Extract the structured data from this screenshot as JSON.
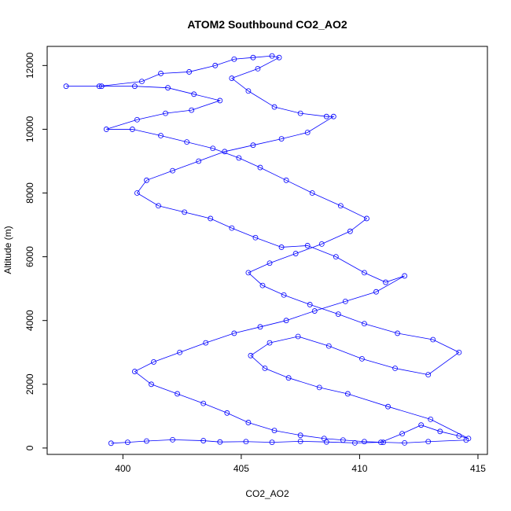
{
  "chart_data": {
    "type": "scatter",
    "title": "ATOM2 Southbound CO2_AO2",
    "xlabel": "CO2_AO2",
    "ylabel": "Altitude (m)",
    "xlim": [
      396.8,
      415.4
    ],
    "ylim": [
      -200,
      12600
    ],
    "xticks": [
      400,
      405,
      410,
      415
    ],
    "yticks": [
      0,
      2000,
      4000,
      6000,
      8000,
      10000,
      12000
    ],
    "grid": false,
    "legend": "none",
    "connected": true,
    "color": "#0000ff",
    "marker": "open-circle",
    "series": [
      {
        "points": [
          [
            399.5,
            150
          ],
          [
            400.2,
            180
          ],
          [
            401.0,
            220
          ],
          [
            402.1,
            260
          ],
          [
            403.4,
            230
          ],
          [
            404.1,
            190
          ],
          [
            405.2,
            200
          ],
          [
            406.3,
            180
          ],
          [
            407.5,
            210
          ],
          [
            408.6,
            190
          ],
          [
            409.8,
            160
          ],
          [
            410.9,
            180
          ],
          [
            411.8,
            450
          ],
          [
            412.6,
            720
          ],
          [
            413.4,
            520
          ],
          [
            414.2,
            380
          ],
          [
            414.6,
            300
          ],
          [
            413.0,
            900
          ],
          [
            411.2,
            1300
          ],
          [
            409.5,
            1700
          ],
          [
            408.3,
            1900
          ],
          [
            407.0,
            2200
          ],
          [
            406.0,
            2500
          ],
          [
            405.4,
            2900
          ],
          [
            406.2,
            3300
          ],
          [
            407.4,
            3500
          ],
          [
            408.7,
            3200
          ],
          [
            410.1,
            2800
          ],
          [
            411.5,
            2500
          ],
          [
            412.9,
            2300
          ],
          [
            414.2,
            3000
          ],
          [
            413.1,
            3400
          ],
          [
            411.6,
            3600
          ],
          [
            410.2,
            3900
          ],
          [
            409.1,
            4200
          ],
          [
            407.9,
            4500
          ],
          [
            406.8,
            4800
          ],
          [
            405.9,
            5100
          ],
          [
            405.3,
            5500
          ],
          [
            406.2,
            5800
          ],
          [
            407.3,
            6100
          ],
          [
            408.4,
            6400
          ],
          [
            409.6,
            6800
          ],
          [
            410.3,
            7200
          ],
          [
            409.2,
            7600
          ],
          [
            408.0,
            8000
          ],
          [
            406.9,
            8400
          ],
          [
            405.8,
            8800
          ],
          [
            404.9,
            9100
          ],
          [
            403.8,
            9400
          ],
          [
            402.7,
            9600
          ],
          [
            401.6,
            9800
          ],
          [
            400.4,
            10000
          ],
          [
            399.3,
            10000
          ],
          [
            400.6,
            10300
          ],
          [
            401.8,
            10500
          ],
          [
            402.9,
            10600
          ],
          [
            404.1,
            10900
          ],
          [
            403.0,
            11100
          ],
          [
            401.9,
            11300
          ],
          [
            400.5,
            11350
          ],
          [
            399.1,
            11350
          ],
          [
            397.6,
            11350
          ],
          [
            399.0,
            11350
          ],
          [
            400.8,
            11500
          ],
          [
            401.6,
            11750
          ],
          [
            402.8,
            11800
          ],
          [
            403.9,
            12000
          ],
          [
            404.7,
            12200
          ],
          [
            405.5,
            12250
          ],
          [
            406.3,
            12300
          ],
          [
            406.6,
            12250
          ],
          [
            405.7,
            11900
          ],
          [
            404.6,
            11600
          ],
          [
            405.3,
            11200
          ],
          [
            406.4,
            10700
          ],
          [
            407.5,
            10500
          ],
          [
            408.6,
            10400
          ],
          [
            408.9,
            10400
          ],
          [
            407.8,
            9900
          ],
          [
            406.7,
            9700
          ],
          [
            405.5,
            9500
          ],
          [
            404.3,
            9300
          ],
          [
            403.2,
            9000
          ],
          [
            402.1,
            8700
          ],
          [
            401.0,
            8400
          ],
          [
            400.6,
            8000
          ],
          [
            401.5,
            7600
          ],
          [
            402.6,
            7400
          ],
          [
            403.7,
            7200
          ],
          [
            404.6,
            6900
          ],
          [
            405.6,
            6600
          ],
          [
            406.7,
            6300
          ],
          [
            407.8,
            6350
          ],
          [
            409.0,
            6000
          ],
          [
            410.2,
            5500
          ],
          [
            411.1,
            5200
          ],
          [
            411.9,
            5400
          ],
          [
            410.7,
            4900
          ],
          [
            409.4,
            4600
          ],
          [
            408.1,
            4300
          ],
          [
            406.9,
            4000
          ],
          [
            405.8,
            3800
          ],
          [
            404.7,
            3600
          ],
          [
            403.5,
            3300
          ],
          [
            402.4,
            3000
          ],
          [
            401.3,
            2700
          ],
          [
            400.5,
            2400
          ],
          [
            401.2,
            2000
          ],
          [
            402.3,
            1700
          ],
          [
            403.4,
            1400
          ],
          [
            404.4,
            1100
          ],
          [
            405.3,
            800
          ],
          [
            406.4,
            550
          ],
          [
            407.5,
            400
          ],
          [
            408.5,
            300
          ],
          [
            409.3,
            250
          ],
          [
            410.2,
            200
          ],
          [
            411.0,
            180
          ],
          [
            411.9,
            160
          ],
          [
            412.9,
            200
          ],
          [
            414.5,
            250
          ]
        ]
      }
    ]
  }
}
